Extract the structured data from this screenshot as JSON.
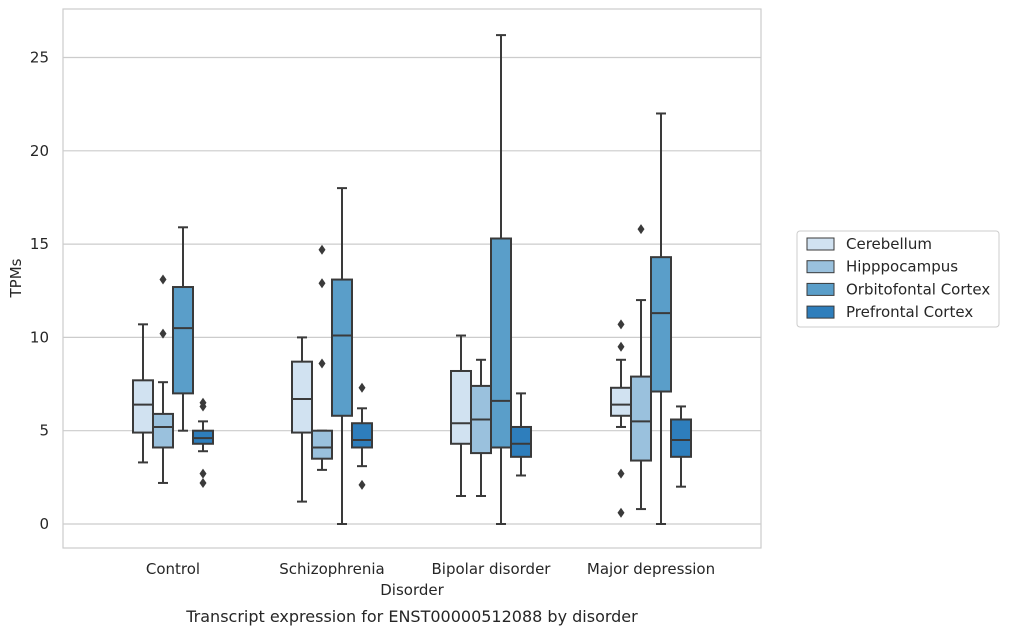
{
  "chart_data": {
    "type": "box",
    "title": "",
    "caption": "Transcript expression for ENST00000512088 by disorder",
    "xlabel": "Disorder",
    "ylabel": "TPMs",
    "ylim": [
      -1.2,
      27.5
    ],
    "yticks": [
      0,
      5,
      10,
      15,
      20,
      25
    ],
    "grid": "horizontal",
    "legend_position": "right",
    "categories": [
      "Control",
      "Schizophrenia",
      "Bipolar disorder",
      "Major depression"
    ],
    "series": [
      {
        "name": "Cerebellum",
        "color": "#d1e2f1",
        "boxes": [
          {
            "whisker_low": 3.3,
            "q1": 4.9,
            "median": 6.4,
            "q3": 7.7,
            "whisker_high": 10.7,
            "outliers": []
          },
          {
            "whisker_low": 1.2,
            "q1": 4.9,
            "median": 6.7,
            "q3": 8.7,
            "whisker_high": 10.0,
            "outliers": []
          },
          {
            "whisker_low": 1.5,
            "q1": 4.3,
            "median": 5.4,
            "q3": 8.2,
            "whisker_high": 10.1,
            "outliers": []
          },
          {
            "whisker_low": 5.2,
            "q1": 5.8,
            "median": 6.4,
            "q3": 7.3,
            "whisker_high": 8.8,
            "outliers": [
              10.7,
              9.5,
              2.7,
              0.6
            ]
          }
        ]
      },
      {
        "name": "Hipppocampus",
        "color": "#9ac1dd",
        "boxes": [
          {
            "whisker_low": 2.2,
            "q1": 4.1,
            "median": 5.2,
            "q3": 5.9,
            "whisker_high": 7.6,
            "outliers": [
              13.1,
              10.2
            ]
          },
          {
            "whisker_low": 2.9,
            "q1": 3.5,
            "median": 4.1,
            "q3": 5.0,
            "whisker_high": 5.0,
            "outliers": [
              14.7,
              12.9,
              8.6
            ]
          },
          {
            "whisker_low": 1.5,
            "q1": 3.8,
            "median": 5.6,
            "q3": 7.4,
            "whisker_high": 8.8,
            "outliers": []
          },
          {
            "whisker_low": 0.8,
            "q1": 3.4,
            "median": 5.5,
            "q3": 7.9,
            "whisker_high": 12.0,
            "outliers": [
              15.8
            ]
          }
        ]
      },
      {
        "name": "Orbitofontal Cortex",
        "color": "#5a9ec9",
        "boxes": [
          {
            "whisker_low": 5.0,
            "q1": 7.0,
            "median": 10.5,
            "q3": 12.7,
            "whisker_high": 15.9,
            "outliers": []
          },
          {
            "whisker_low": 0.0,
            "q1": 5.8,
            "median": 10.1,
            "q3": 13.1,
            "whisker_high": 18.0,
            "outliers": []
          },
          {
            "whisker_low": 0.0,
            "q1": 4.1,
            "median": 6.6,
            "q3": 15.3,
            "whisker_high": 26.2,
            "outliers": []
          },
          {
            "whisker_low": 0.0,
            "q1": 7.1,
            "median": 11.3,
            "q3": 14.3,
            "whisker_high": 22.0,
            "outliers": []
          }
        ]
      },
      {
        "name": "Prefrontal Cortex",
        "color": "#2e7ebc",
        "boxes": [
          {
            "whisker_low": 3.9,
            "q1": 4.3,
            "median": 4.6,
            "q3": 5.0,
            "whisker_high": 5.5,
            "outliers": [
              6.5,
              6.3,
              2.7,
              2.2
            ]
          },
          {
            "whisker_low": 3.1,
            "q1": 4.1,
            "median": 4.5,
            "q3": 5.4,
            "whisker_high": 6.2,
            "outliers": [
              7.3,
              2.1
            ]
          },
          {
            "whisker_low": 2.6,
            "q1": 3.6,
            "median": 4.3,
            "q3": 5.2,
            "whisker_high": 7.0,
            "outliers": []
          },
          {
            "whisker_low": 2.0,
            "q1": 3.6,
            "median": 4.5,
            "q3": 5.6,
            "whisker_high": 6.3,
            "outliers": []
          }
        ]
      }
    ]
  }
}
